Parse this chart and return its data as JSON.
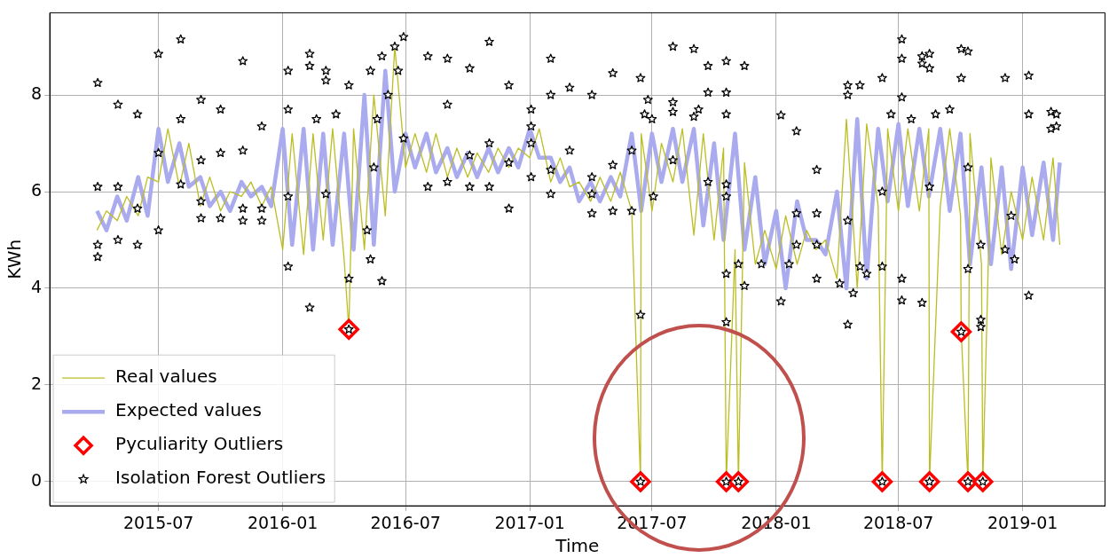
{
  "chart_data": {
    "type": "line",
    "xlabel": "Time",
    "ylabel": "KWh",
    "xlim": [
      "2015-01-21",
      "2019-05-03"
    ],
    "xticks": [
      "2015-07",
      "2016-01",
      "2016-07",
      "2017-01",
      "2017-07",
      "2018-01",
      "2018-07",
      "2019-01"
    ],
    "ylim": [
      -0.5,
      9.7
    ],
    "yticks": [
      0,
      2,
      4,
      6,
      8
    ],
    "grid": true,
    "legend": "bottom left",
    "series": [
      {
        "name": "Real values",
        "type": "line",
        "marker": "none",
        "color": "#bcbd22",
        "x": [
          "2015-04-01",
          "2015-04-15",
          "2015-05-01",
          "2015-05-15",
          "2015-06-01",
          "2015-06-15",
          "2015-07-01",
          "2015-07-15",
          "2015-08-01",
          "2015-08-15",
          "2015-09-01",
          "2015-09-15",
          "2015-10-01",
          "2015-10-15",
          "2015-11-01",
          "2015-11-15",
          "2015-12-01",
          "2015-12-15",
          "2016-01-01",
          "2016-01-15",
          "2016-02-01",
          "2016-02-15",
          "2016-03-01",
          "2016-03-15",
          "2016-04-01",
          "2016-04-08",
          "2016-04-15",
          "2016-05-01",
          "2016-05-15",
          "2016-06-01",
          "2016-06-15",
          "2016-07-01",
          "2016-07-15",
          "2016-08-01",
          "2016-08-15",
          "2016-09-01",
          "2016-09-15",
          "2016-10-01",
          "2016-10-15",
          "2016-11-01",
          "2016-11-15",
          "2016-12-01",
          "2016-12-15",
          "2017-01-01",
          "2017-01-15",
          "2017-02-01",
          "2017-02-15",
          "2017-03-01",
          "2017-03-15",
          "2017-04-01",
          "2017-04-15",
          "2017-05-01",
          "2017-05-15",
          "2017-06-01",
          "2017-06-14",
          "2017-06-15",
          "2017-07-01",
          "2017-07-15",
          "2017-08-01",
          "2017-08-15",
          "2017-09-01",
          "2017-09-15",
          "2017-10-01",
          "2017-10-15",
          "2017-10-19",
          "2017-11-01",
          "2017-11-06",
          "2017-11-15",
          "2017-12-01",
          "2017-12-15",
          "2018-01-01",
          "2018-01-15",
          "2018-02-01",
          "2018-02-15",
          "2018-03-01",
          "2018-03-15",
          "2018-04-01",
          "2018-04-15",
          "2018-05-01",
          "2018-05-15",
          "2018-06-01",
          "2018-06-07",
          "2018-06-15",
          "2018-07-01",
          "2018-07-15",
          "2018-08-01",
          "2018-08-15",
          "2018-08-16",
          "2018-09-01",
          "2018-09-15",
          "2018-10-01",
          "2018-10-02",
          "2018-10-12",
          "2018-10-15",
          "2018-11-01",
          "2018-11-03",
          "2018-11-15",
          "2018-12-01",
          "2018-12-15",
          "2019-01-01",
          "2019-01-15",
          "2019-02-01",
          "2019-02-15",
          "2019-02-25"
        ],
        "values": [
          5.2,
          5.6,
          5.4,
          5.9,
          5.5,
          6.3,
          6.2,
          7.3,
          6.1,
          7.0,
          5.7,
          6.3,
          5.6,
          6.0,
          5.9,
          6.2,
          5.7,
          6.1,
          4.8,
          7.2,
          4.7,
          7.2,
          5.0,
          7.3,
          4.6,
          3.15,
          7.3,
          4.8,
          8.0,
          5.5,
          9.0,
          6.5,
          7.2,
          6.4,
          7.2,
          6.3,
          6.9,
          6.3,
          6.8,
          6.4,
          6.9,
          6.5,
          6.9,
          6.7,
          7.3,
          6.2,
          6.7,
          6.1,
          6.2,
          5.8,
          6.3,
          5.8,
          6.4,
          5.6,
          0,
          7.2,
          5.6,
          7.0,
          6.2,
          7.3,
          5.1,
          7.2,
          5.0,
          6.9,
          0,
          4.8,
          0,
          6.6,
          4.5,
          5.2,
          4.4,
          5.5,
          4.5,
          5.2,
          4.8,
          5.0,
          4.2,
          7.5,
          4.0,
          7.4,
          5.7,
          0,
          7.3,
          5.6,
          7.3,
          5.6,
          7.3,
          0,
          5.7,
          7.3,
          5.5,
          3.1,
          0,
          7.2,
          4.5,
          0,
          6.7,
          4.7,
          6.0,
          5.0,
          6.3,
          5.0,
          6.7,
          4.9
        ]
      },
      {
        "name": "Expected values",
        "type": "line",
        "marker": "none",
        "color": "#aaaaee",
        "x": [
          "2015-04-01",
          "2015-04-15",
          "2015-05-01",
          "2015-05-15",
          "2015-06-01",
          "2015-06-15",
          "2015-07-01",
          "2015-07-15",
          "2015-08-01",
          "2015-08-15",
          "2015-09-01",
          "2015-09-15",
          "2015-10-01",
          "2015-10-15",
          "2015-11-01",
          "2015-11-15",
          "2015-12-01",
          "2015-12-15",
          "2016-01-01",
          "2016-01-15",
          "2016-02-01",
          "2016-02-15",
          "2016-03-01",
          "2016-03-15",
          "2016-04-01",
          "2016-04-15",
          "2016-05-01",
          "2016-05-15",
          "2016-06-01",
          "2016-06-15",
          "2016-07-01",
          "2016-07-15",
          "2016-08-01",
          "2016-08-15",
          "2016-09-01",
          "2016-09-15",
          "2016-10-01",
          "2016-10-15",
          "2016-11-01",
          "2016-11-15",
          "2016-12-01",
          "2016-12-15",
          "2017-01-01",
          "2017-01-15",
          "2017-02-01",
          "2017-02-15",
          "2017-03-01",
          "2017-03-15",
          "2017-04-01",
          "2017-04-15",
          "2017-05-01",
          "2017-05-15",
          "2017-06-01",
          "2017-06-15",
          "2017-07-01",
          "2017-07-15",
          "2017-08-01",
          "2017-08-15",
          "2017-09-01",
          "2017-09-15",
          "2017-10-01",
          "2017-10-15",
          "2017-11-01",
          "2017-11-15",
          "2017-12-01",
          "2017-12-15",
          "2018-01-01",
          "2018-01-15",
          "2018-02-01",
          "2018-02-15",
          "2018-03-01",
          "2018-03-15",
          "2018-04-01",
          "2018-04-15",
          "2018-05-01",
          "2018-05-15",
          "2018-06-01",
          "2018-06-15",
          "2018-07-01",
          "2018-07-15",
          "2018-08-01",
          "2018-08-15",
          "2018-09-01",
          "2018-09-15",
          "2018-10-01",
          "2018-10-15",
          "2018-11-01",
          "2018-11-15",
          "2018-12-01",
          "2018-12-15",
          "2019-01-01",
          "2019-01-15",
          "2019-02-01",
          "2019-02-15",
          "2019-02-25"
        ],
        "values": [
          5.6,
          5.2,
          5.9,
          5.4,
          6.3,
          5.5,
          7.3,
          6.2,
          7.0,
          6.1,
          6.3,
          5.7,
          6.0,
          5.6,
          6.2,
          5.9,
          6.1,
          5.7,
          7.3,
          4.9,
          7.3,
          4.8,
          7.2,
          4.9,
          7.2,
          4.8,
          8.0,
          4.9,
          8.5,
          6.0,
          7.2,
          6.5,
          7.2,
          6.4,
          6.9,
          6.3,
          6.8,
          6.3,
          6.9,
          6.4,
          6.9,
          6.5,
          7.3,
          6.7,
          6.7,
          6.2,
          6.5,
          5.8,
          6.2,
          5.8,
          6.3,
          5.9,
          7.2,
          5.6,
          7.2,
          6.2,
          7.3,
          6.2,
          7.3,
          5.3,
          7.0,
          5.0,
          7.2,
          4.8,
          6.3,
          4.5,
          5.6,
          4.0,
          5.8,
          5.0,
          5.0,
          4.7,
          6.0,
          4.0,
          7.5,
          4.2,
          7.3,
          5.8,
          7.4,
          5.7,
          7.3,
          5.9,
          7.3,
          5.6,
          7.2,
          4.5,
          6.5,
          4.5,
          6.5,
          4.4,
          6.5,
          5.1,
          6.6,
          5.0,
          6.6
        ]
      },
      {
        "name": "Pyculiarity Outliers",
        "type": "scatter",
        "marker": "diamond",
        "color": "#ff0000",
        "x": [
          "2016-04-08",
          "2017-06-14",
          "2017-10-19",
          "2017-11-06",
          "2018-06-07",
          "2018-08-16",
          "2018-10-02",
          "2018-10-12",
          "2018-11-03"
        ],
        "values": [
          3.15,
          0,
          0,
          0,
          0,
          0,
          3.1,
          0,
          0
        ]
      },
      {
        "name": "Isolation Forest Outliers",
        "type": "scatter",
        "marker": "star",
        "color": "#000000",
        "x": [
          "2015-04-02",
          "2015-04-02",
          "2015-04-02",
          "2015-04-02",
          "2015-05-02",
          "2015-05-02",
          "2015-05-02",
          "2015-05-31",
          "2015-05-31",
          "2015-05-31",
          "2015-07-01",
          "2015-07-01",
          "2015-07-01",
          "2015-08-03",
          "2015-08-03",
          "2015-08-03",
          "2015-09-02",
          "2015-09-02",
          "2015-09-02",
          "2015-09-02",
          "2015-10-01",
          "2015-10-01",
          "2015-10-01",
          "2015-11-03",
          "2015-11-03",
          "2015-11-03",
          "2015-11-03",
          "2015-12-01",
          "2015-12-01",
          "2015-12-01",
          "2016-01-09",
          "2016-01-09",
          "2016-01-09",
          "2016-01-09",
          "2016-02-10",
          "2016-02-10",
          "2016-02-10",
          "2016-02-20",
          "2016-03-05",
          "2016-03-05",
          "2016-03-05",
          "2016-03-20",
          "2016-04-08",
          "2016-04-08",
          "2016-04-08",
          "2016-05-05",
          "2016-05-10",
          "2016-05-10",
          "2016-05-15",
          "2016-05-20",
          "2016-05-27",
          "2016-05-27",
          "2016-06-05",
          "2016-06-15",
          "2016-06-20",
          "2016-06-28",
          "2016-06-28",
          "2016-08-03",
          "2016-08-03",
          "2016-09-01",
          "2016-09-01",
          "2016-09-01",
          "2016-10-04",
          "2016-10-04",
          "2016-10-04",
          "2016-11-02",
          "2016-11-02",
          "2016-11-02",
          "2016-12-01",
          "2016-12-01",
          "2016-12-01",
          "2017-01-03",
          "2017-01-03",
          "2017-01-03",
          "2017-01-03",
          "2017-02-01",
          "2017-02-01",
          "2017-02-01",
          "2017-02-01",
          "2017-03-01",
          "2017-03-01",
          "2017-04-03",
          "2017-04-03",
          "2017-04-03",
          "2017-04-03",
          "2017-05-04",
          "2017-05-04",
          "2017-05-04",
          "2017-06-01",
          "2017-06-01",
          "2017-06-14",
          "2017-06-14",
          "2017-06-14",
          "2017-06-20",
          "2017-06-25",
          "2017-07-01",
          "2017-07-03",
          "2017-08-01",
          "2017-08-01",
          "2017-08-01",
          "2017-08-01",
          "2017-09-01",
          "2017-09-01",
          "2017-09-08",
          "2017-09-22",
          "2017-09-22",
          "2017-09-22",
          "2017-10-19",
          "2017-10-19",
          "2017-10-19",
          "2017-10-19",
          "2017-10-19",
          "2017-10-19",
          "2017-10-19",
          "2017-10-19",
          "2017-11-06",
          "2017-11-06",
          "2017-11-15",
          "2017-11-15",
          "2017-12-10",
          "2018-01-08",
          "2018-01-08",
          "2018-01-20",
          "2018-01-31",
          "2018-01-31",
          "2018-01-31",
          "2018-03-02",
          "2018-03-02",
          "2018-03-02",
          "2018-03-02",
          "2018-04-05",
          "2018-04-17",
          "2018-04-17",
          "2018-04-17",
          "2018-04-17",
          "2018-04-25",
          "2018-05-05",
          "2018-05-05",
          "2018-05-15",
          "2018-06-07",
          "2018-06-07",
          "2018-06-07",
          "2018-06-07",
          "2018-06-20",
          "2018-07-06",
          "2018-07-06",
          "2018-07-06",
          "2018-07-06",
          "2018-07-06",
          "2018-07-20",
          "2018-08-05",
          "2018-08-05",
          "2018-08-05",
          "2018-08-16",
          "2018-08-16",
          "2018-08-16",
          "2018-08-16",
          "2018-08-25",
          "2018-09-15",
          "2018-10-02",
          "2018-10-02",
          "2018-10-02",
          "2018-10-12",
          "2018-10-12",
          "2018-10-12",
          "2018-10-12",
          "2018-10-31",
          "2018-10-31",
          "2018-10-31",
          "2018-11-03",
          "2018-12-06",
          "2018-12-06",
          "2018-12-15",
          "2018-12-20",
          "2019-01-10",
          "2019-01-10",
          "2019-01-10",
          "2019-02-12",
          "2019-02-12",
          "2019-02-20",
          "2019-02-20"
        ],
        "values": [
          8.25,
          6.1,
          4.9,
          4.65,
          7.8,
          6.1,
          5.0,
          7.6,
          5.65,
          4.9,
          8.85,
          6.8,
          5.2,
          9.15,
          7.5,
          6.15,
          7.9,
          6.65,
          5.8,
          5.45,
          7.7,
          6.8,
          5.45,
          8.7,
          6.85,
          5.65,
          5.4,
          7.35,
          5.65,
          5.4,
          8.5,
          7.7,
          5.9,
          4.45,
          8.85,
          8.6,
          3.6,
          7.5,
          8.5,
          8.3,
          5.95,
          7.6,
          8.2,
          4.2,
          3.15,
          5.2,
          8.5,
          4.6,
          6.5,
          7.5,
          8.8,
          4.15,
          8.0,
          9.0,
          8.5,
          9.2,
          7.1,
          8.8,
          6.1,
          8.75,
          7.8,
          6.2,
          8.55,
          6.75,
          6.1,
          9.1,
          7.0,
          6.1,
          8.2,
          6.6,
          5.65,
          7.7,
          7.35,
          7.0,
          6.3,
          8.75,
          8.0,
          6.45,
          5.95,
          8.15,
          6.85,
          8.0,
          6.3,
          5.95,
          5.55,
          8.45,
          6.55,
          5.6,
          6.85,
          5.6,
          8.35,
          3.45,
          0,
          7.6,
          7.9,
          7.5,
          5.9,
          9.0,
          7.85,
          7.65,
          6.65,
          8.95,
          7.55,
          7.7,
          8.6,
          8.05,
          6.2,
          8.7,
          8.05,
          7.6,
          6.15,
          5.9,
          4.3,
          3.3,
          0,
          4.5,
          0,
          8.6,
          4.05,
          4.5,
          7.58,
          3.73,
          4.5,
          7.25,
          5.55,
          4.9,
          6.45,
          5.55,
          4.9,
          4.2,
          4.1,
          8.0,
          8.2,
          5.4,
          3.25,
          3.9,
          8.2,
          4.45,
          4.3,
          8.35,
          6.0,
          4.45,
          0,
          7.6,
          9.15,
          8.75,
          7.95,
          4.2,
          3.75,
          7.5,
          8.8,
          8.65,
          3.7,
          8.85,
          8.55,
          6.1,
          0,
          7.6,
          7.7,
          8.95,
          8.35,
          3.1,
          8.9,
          6.5,
          4.4,
          0,
          4.9,
          3.35,
          3.2,
          0,
          8.35,
          4.8,
          5.5,
          4.6,
          8.4,
          7.6,
          3.85,
          7.65,
          7.3,
          7.6,
          7.35
        ]
      }
    ]
  }
}
